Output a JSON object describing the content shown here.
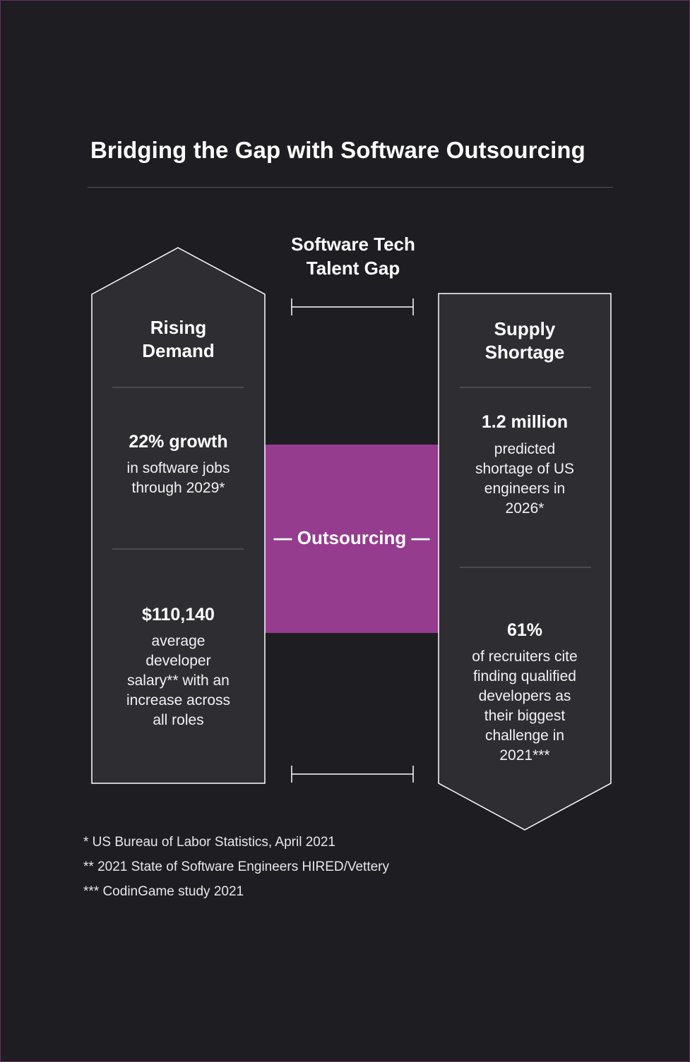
{
  "title": "Bridging the Gap with Software Outsourcing",
  "gap_label_line1": "Software Tech",
  "gap_label_line2": "Talent Gap",
  "left_column": {
    "title_line1": "Rising",
    "title_line2": "Demand",
    "stat1_value": "22% growth",
    "stat1_desc_line1": "in software jobs",
    "stat1_desc_line2": "through 2029*",
    "stat2_value": "$110,140",
    "stat2_desc_lines": [
      "average",
      "developer",
      "salary** with an",
      "increase across",
      "all roles"
    ]
  },
  "right_column": {
    "title_line1": "Supply",
    "title_line2": "Shortage",
    "stat1_value": "1.2 million",
    "stat1_desc_lines": [
      "predicted",
      "shortage of US",
      "engineers in",
      "2026*"
    ],
    "stat2_value": "61%",
    "stat2_desc_lines": [
      "of recruiters cite",
      "finding qualified",
      "developers as",
      "their biggest",
      "challenge in",
      "2021***"
    ]
  },
  "bridge_label": "— Outsourcing —",
  "footnotes": [
    "* US Bureau of Labor Statistics, April 2021",
    "** 2021 State of Software Engineers HIRED/Vettery",
    "*** CodinGame study 2021"
  ],
  "colors": {
    "background": "#1e1d22",
    "panel": "#2e2d32",
    "bridge": "#953c8f",
    "outline": "#ffffff"
  }
}
